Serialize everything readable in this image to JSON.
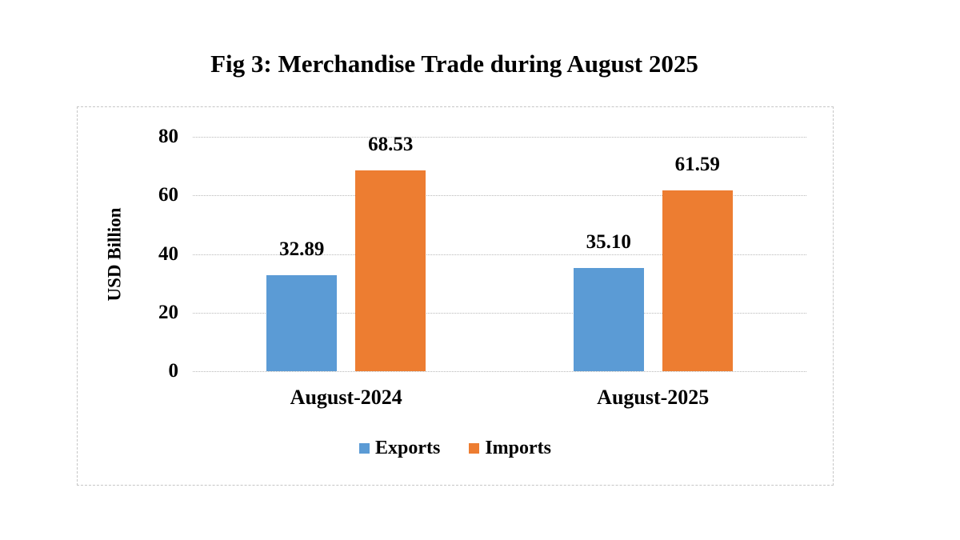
{
  "figure": {
    "title": "Fig 3: Merchandise Trade during August 2025"
  },
  "chart_data": {
    "type": "bar",
    "title": "Fig 3: Merchandise Trade during August 2025",
    "categories": [
      "August-2024",
      "August-2025"
    ],
    "series": [
      {
        "name": "Exports",
        "color": "#5B9BD5",
        "values": [
          32.89,
          35.1
        ],
        "labels": [
          "32.89",
          "35.10"
        ]
      },
      {
        "name": "Imports",
        "color": "#ED7D31",
        "values": [
          68.53,
          61.59
        ],
        "labels": [
          "68.53",
          "61.59"
        ]
      }
    ],
    "xlabel": "",
    "ylabel": "USD Billion",
    "ylim": [
      0,
      80
    ],
    "yticks": [
      0,
      20,
      40,
      60,
      80
    ],
    "grid": true,
    "gridline_style": "dotted",
    "legend_position": "bottom",
    "colors": {
      "exports": "#5B9BD5",
      "imports": "#ED7D31",
      "gridline": "#b9b9b9",
      "frame_border": "#c6c6c6",
      "text": "#000000"
    }
  }
}
